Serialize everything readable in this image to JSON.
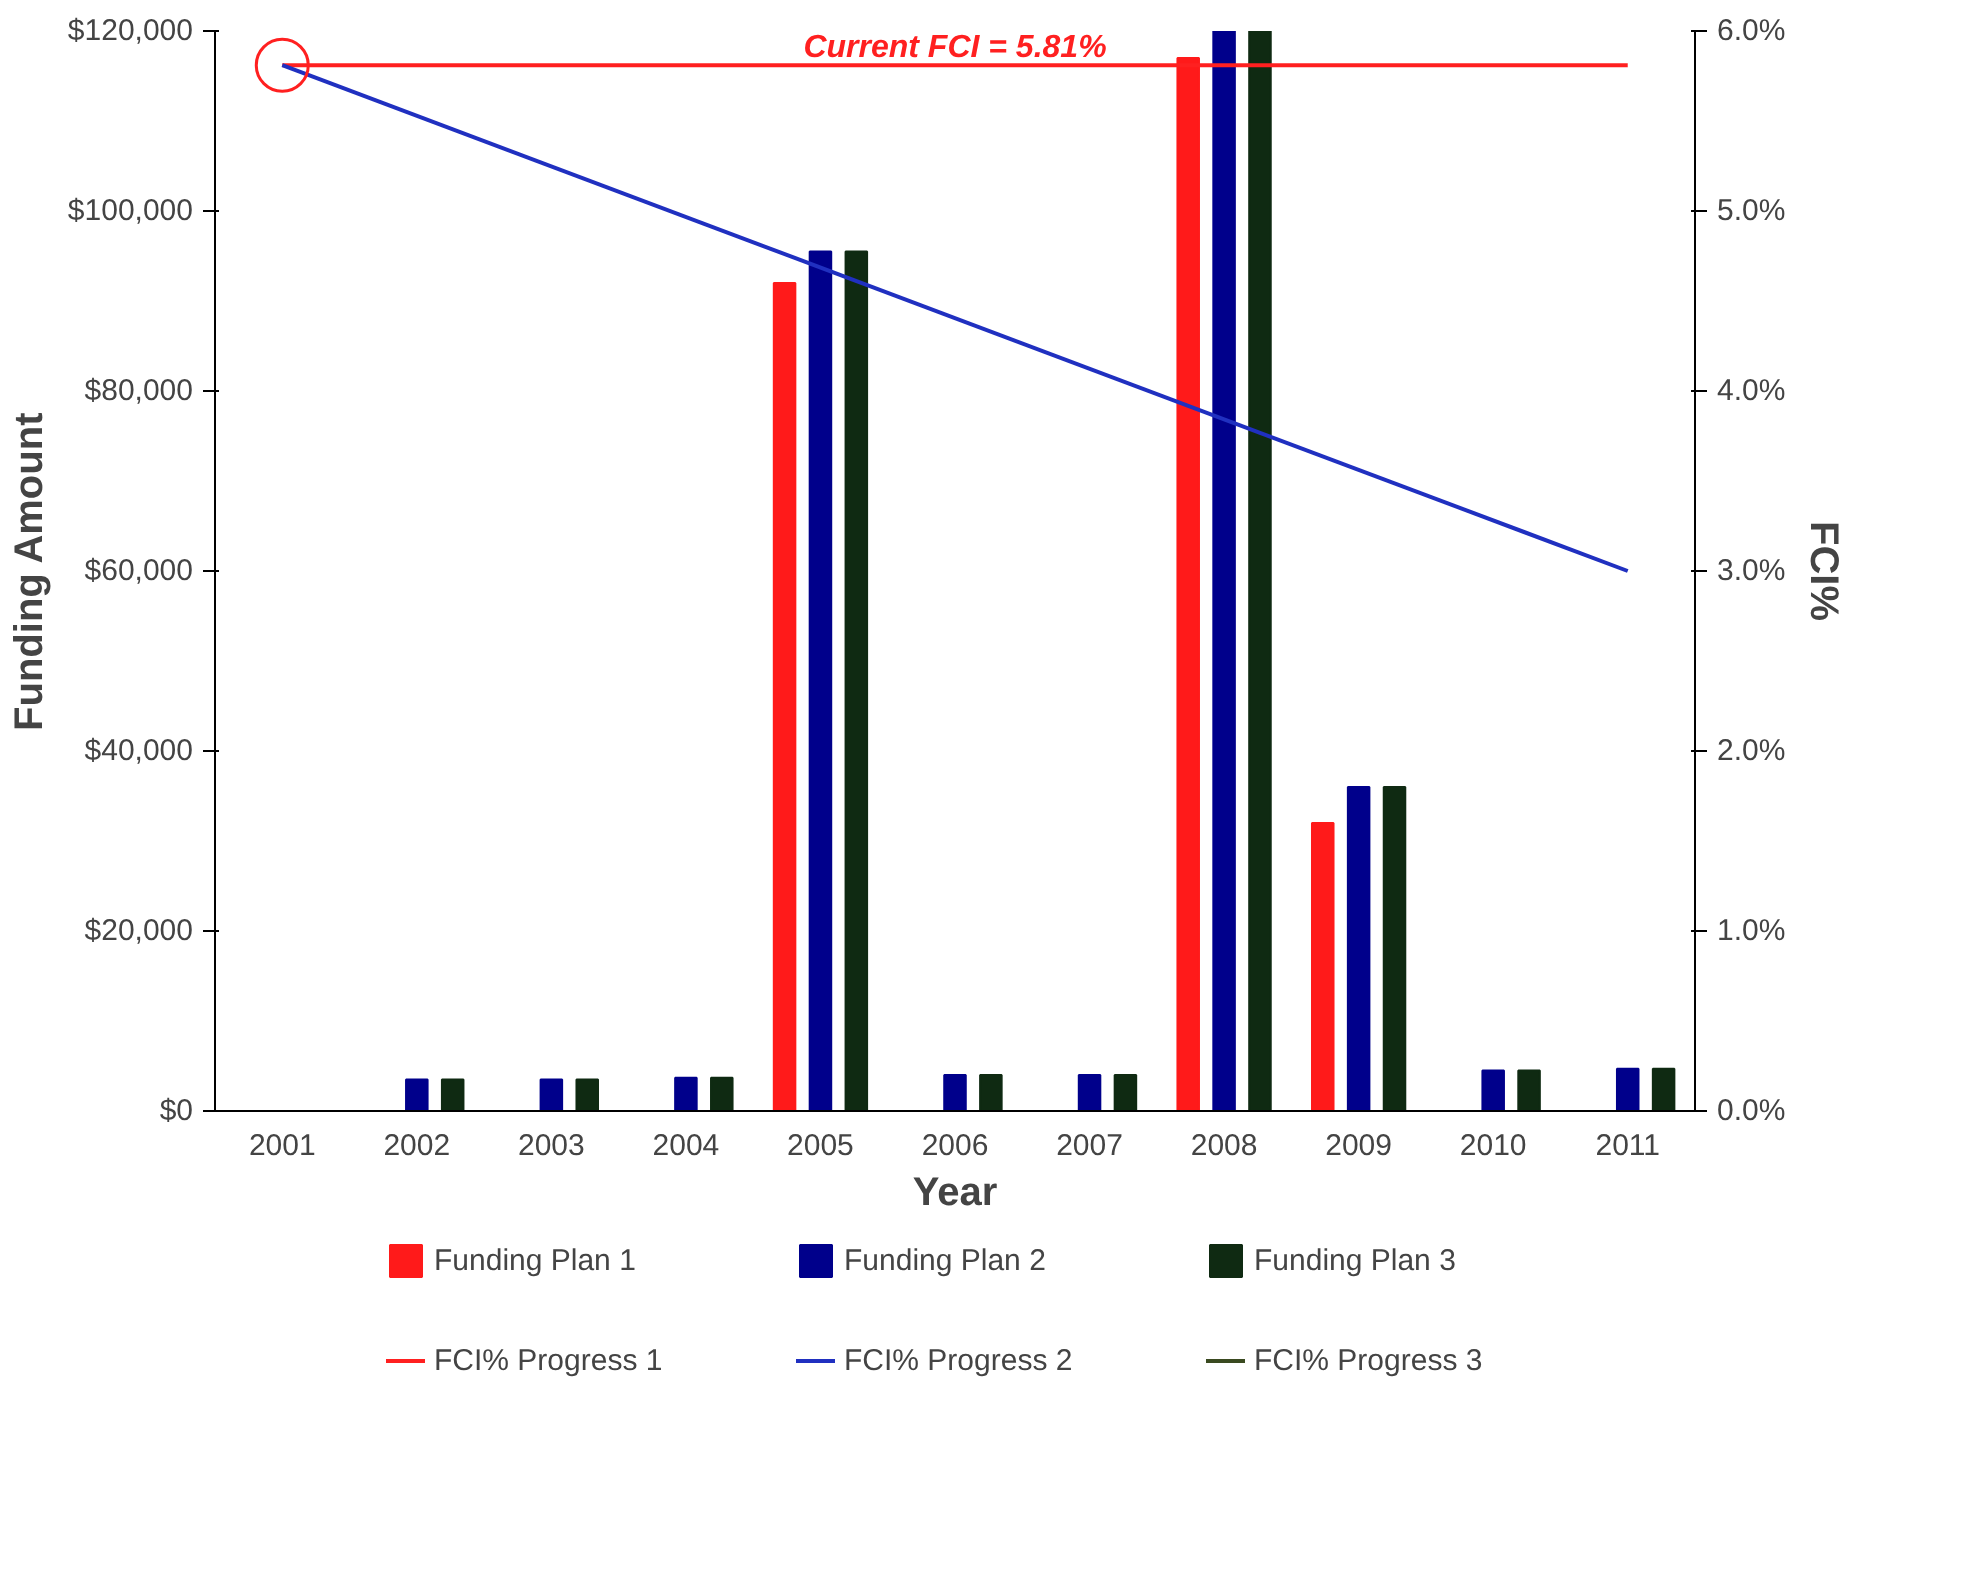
{
  "chart_data": {
    "type": "bar",
    "xlabel": "Year",
    "ylabel": "Funding Amount",
    "y2label": "FCI%",
    "categories": [
      "2001",
      "2002",
      "2003",
      "2004",
      "2005",
      "2006",
      "2007",
      "2008",
      "2009",
      "2010",
      "2011"
    ],
    "series": [
      {
        "name": "Funding Plan 1",
        "color": "#ff1a1a",
        "values": [
          0,
          0,
          0,
          0,
          92000,
          0,
          0,
          117000,
          32000,
          0,
          0
        ]
      },
      {
        "name": "Funding Plan 2",
        "color": "#00008b",
        "values": [
          0,
          3500,
          3500,
          3700,
          95500,
          4000,
          4000,
          120000,
          36000,
          4500,
          4700
        ]
      },
      {
        "name": "Funding Plan 3",
        "color": "#0f2a12",
        "values": [
          0,
          3500,
          3500,
          3700,
          95500,
          4000,
          4000,
          120000,
          36000,
          4500,
          4700
        ]
      },
      {
        "name": "FCI% Progress 1",
        "type": "line",
        "axis": "y2",
        "color": "#ff2020",
        "values": [
          5.81,
          null,
          null,
          null,
          null,
          null,
          null,
          null,
          null,
          null,
          5.81
        ]
      },
      {
        "name": "FCI% Progress 2",
        "type": "line",
        "axis": "y2",
        "color": "#2030c0",
        "values": [
          5.81,
          null,
          null,
          null,
          null,
          null,
          null,
          null,
          null,
          null,
          3.0
        ]
      },
      {
        "name": "FCI% Progress 3",
        "type": "line",
        "axis": "y2",
        "color": "#3a4a20",
        "values": [
          null,
          null,
          null,
          null,
          null,
          null,
          null,
          null,
          null,
          null,
          null
        ]
      }
    ],
    "annotations": [
      "Current FCI = 5.81%"
    ],
    "ylim": [
      0,
      120000
    ],
    "yticks": [
      {
        "value": 0,
        "label": "$0"
      },
      {
        "value": 20000,
        "label": "$20,000"
      },
      {
        "value": 40000,
        "label": "$40,000"
      },
      {
        "value": 60000,
        "label": "$60,000"
      },
      {
        "value": 80000,
        "label": "$80,000"
      },
      {
        "value": 100000,
        "label": "$100,000"
      },
      {
        "value": 120000,
        "label": "$120,000"
      }
    ],
    "y2lim": [
      0,
      6
    ],
    "y2ticks": [
      {
        "value": 0,
        "label": "0.0%"
      },
      {
        "value": 1,
        "label": "1.0%"
      },
      {
        "value": 2,
        "label": "2.0%"
      },
      {
        "value": 3,
        "label": "3.0%"
      },
      {
        "value": 4,
        "label": "4.0%"
      },
      {
        "value": 5,
        "label": "5.0%"
      },
      {
        "value": 6,
        "label": "6.0%"
      }
    ],
    "legend": "bottom",
    "grid": false
  }
}
